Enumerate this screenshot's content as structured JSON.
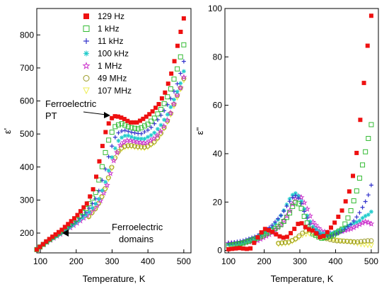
{
  "legend": {
    "entries": [
      {
        "label": "129 Hz",
        "color": "#ee1111",
        "marker": "square-filled"
      },
      {
        "label": "1 kHz",
        "color": "#33bb33",
        "marker": "square-open"
      },
      {
        "label": "11 kHz",
        "color": "#3333cc",
        "marker": "plus"
      },
      {
        "label": "100 kHz",
        "color": "#22cccc",
        "marker": "asterisk"
      },
      {
        "label": "1 MHz",
        "color": "#cc33cc",
        "marker": "star-open"
      },
      {
        "label": "49 MHz",
        "color": "#999922",
        "marker": "circle-open"
      },
      {
        "label": "107 MHz",
        "color": "#eeee55",
        "marker": "triangle-down-open"
      }
    ]
  },
  "annotations": {
    "pt_line1": "Ferroelectric",
    "pt_line2": "PT",
    "dom_line1": "Ferroelectric",
    "dom_line2": "domains"
  },
  "chart_data": [
    {
      "type": "scatter",
      "title": "",
      "xlabel": "Temperature, K",
      "ylabel": "ε'",
      "xlim": [
        90,
        520
      ],
      "ylim": [
        140,
        880
      ],
      "xticks": [
        100,
        200,
        300,
        400,
        500
      ],
      "yticks": [
        200,
        300,
        400,
        500,
        600,
        700,
        800
      ],
      "grid": false,
      "legend_position": "top-left",
      "series": [
        {
          "name": "129 Hz",
          "points": [
            [
              90,
              150
            ],
            [
              120,
              178
            ],
            [
              160,
              210
            ],
            [
              200,
              250
            ],
            [
              230,
              290
            ],
            [
              250,
              340
            ],
            [
              265,
              420
            ],
            [
              280,
              500
            ],
            [
              295,
              545
            ],
            [
              310,
              555
            ],
            [
              330,
              548
            ],
            [
              350,
              535
            ],
            [
              370,
              535
            ],
            [
              390,
              548
            ],
            [
              410,
              565
            ],
            [
              430,
              590
            ],
            [
              450,
              630
            ],
            [
              470,
              700
            ],
            [
              485,
              780
            ],
            [
              500,
              850
            ]
          ]
        },
        {
          "name": "1 kHz",
          "points": [
            [
              90,
              150
            ],
            [
              120,
              176
            ],
            [
              160,
              206
            ],
            [
              200,
              242
            ],
            [
              230,
              278
            ],
            [
              255,
              325
            ],
            [
              272,
              400
            ],
            [
              288,
              475
            ],
            [
              305,
              520
            ],
            [
              325,
              532
            ],
            [
              350,
              520
            ],
            [
              375,
              515
            ],
            [
              400,
              530
            ],
            [
              420,
              550
            ],
            [
              440,
              580
            ],
            [
              460,
              625
            ],
            [
              480,
              690
            ],
            [
              500,
              770
            ]
          ]
        },
        {
          "name": "11 kHz",
          "points": [
            [
              90,
              150
            ],
            [
              120,
              175
            ],
            [
              160,
              203
            ],
            [
              200,
              236
            ],
            [
              230,
              266
            ],
            [
              258,
              310
            ],
            [
              278,
              380
            ],
            [
              295,
              450
            ],
            [
              312,
              500
            ],
            [
              332,
              512
            ],
            [
              355,
              505
            ],
            [
              380,
              500
            ],
            [
              405,
              515
            ],
            [
              425,
              540
            ],
            [
              445,
              570
            ],
            [
              465,
              610
            ],
            [
              485,
              660
            ],
            [
              500,
              720
            ]
          ]
        },
        {
          "name": "100 kHz",
          "points": [
            [
              90,
              150
            ],
            [
              120,
              174
            ],
            [
              160,
              200
            ],
            [
              200,
              231
            ],
            [
              235,
              262
            ],
            [
              262,
              300
            ],
            [
              285,
              365
            ],
            [
              302,
              440
            ],
            [
              320,
              485
            ],
            [
              340,
              497
            ],
            [
              365,
              487
            ],
            [
              390,
              485
            ],
            [
              415,
              500
            ],
            [
              435,
              525
            ],
            [
              455,
              560
            ],
            [
              475,
              610
            ],
            [
              490,
              650
            ],
            [
              500,
              690
            ]
          ]
        },
        {
          "name": "1 MHz",
          "points": [
            [
              100,
              158
            ],
            [
              130,
              180
            ],
            [
              170,
              206
            ],
            [
              210,
              236
            ],
            [
              240,
              262
            ],
            [
              265,
              292
            ],
            [
              288,
              350
            ],
            [
              306,
              425
            ],
            [
              325,
              470
            ],
            [
              345,
              482
            ],
            [
              370,
              476
            ],
            [
              395,
              472
            ],
            [
              420,
              488
            ],
            [
              440,
              515
            ],
            [
              460,
              555
            ],
            [
              480,
              615
            ],
            [
              495,
              650
            ],
            [
              500,
              672
            ]
          ]
        },
        {
          "name": "49 MHz",
          "points": [
            [
              235,
              250
            ],
            [
              258,
              280
            ],
            [
              278,
              325
            ],
            [
              296,
              390
            ],
            [
              312,
              440
            ],
            [
              330,
              462
            ],
            [
              350,
              466
            ],
            [
              370,
              462
            ],
            [
              395,
              460
            ],
            [
              420,
              478
            ],
            [
              440,
              508
            ],
            [
              460,
              552
            ],
            [
              480,
              612
            ],
            [
              495,
              650
            ],
            [
              500,
              668
            ]
          ]
        },
        {
          "name": "107 MHz",
          "points": [
            [
              235,
              248
            ],
            [
              258,
              278
            ],
            [
              278,
              320
            ],
            [
              296,
              385
            ],
            [
              312,
              435
            ],
            [
              330,
              458
            ],
            [
              350,
              462
            ],
            [
              370,
              458
            ],
            [
              395,
              456
            ],
            [
              420,
              474
            ],
            [
              440,
              505
            ],
            [
              460,
              548
            ],
            [
              480,
              605
            ],
            [
              495,
              646
            ],
            [
              500,
              662
            ]
          ]
        }
      ]
    },
    {
      "type": "scatter",
      "title": "",
      "xlabel": "Temperature, K",
      "ylabel": "ε''",
      "xlim": [
        90,
        520
      ],
      "ylim": [
        -1,
        100
      ],
      "xticks": [
        100,
        200,
        300,
        400,
        500
      ],
      "yticks": [
        0,
        20,
        40,
        60,
        80,
        100
      ],
      "grid": false,
      "series": [
        {
          "name": "129 Hz",
          "points": [
            [
              100,
              0.5
            ],
            [
              130,
              1
            ],
            [
              160,
              0.5
            ],
            [
              180,
              5
            ],
            [
              200,
              9
            ],
            [
              220,
              8
            ],
            [
              240,
              6
            ],
            [
              260,
              5
            ],
            [
              280,
              8
            ],
            [
              300,
              12
            ],
            [
              320,
              9
            ],
            [
              340,
              8
            ],
            [
              360,
              5
            ],
            [
              380,
              8
            ],
            [
              400,
              12
            ],
            [
              420,
              17
            ],
            [
              440,
              25
            ],
            [
              455,
              35
            ],
            [
              470,
              55
            ],
            [
              480,
              70
            ],
            [
              490,
              85
            ],
            [
              500,
              97
            ]
          ]
        },
        {
          "name": "1 kHz",
          "points": [
            [
              100,
              2
            ],
            [
              140,
              3
            ],
            [
              180,
              5
            ],
            [
              220,
              8
            ],
            [
              250,
              11
            ],
            [
              270,
              15
            ],
            [
              285,
              20
            ],
            [
              300,
              19
            ],
            [
              315,
              13
            ],
            [
              335,
              7
            ],
            [
              360,
              5
            ],
            [
              390,
              6
            ],
            [
              420,
              9
            ],
            [
              440,
              15
            ],
            [
              460,
              25
            ],
            [
              475,
              35
            ],
            [
              490,
              45
            ],
            [
              500,
              52
            ]
          ]
        },
        {
          "name": "11 kHz",
          "points": [
            [
              100,
              3
            ],
            [
              140,
              4
            ],
            [
              180,
              6
            ],
            [
              220,
              10
            ],
            [
              250,
              15
            ],
            [
              270,
              20
            ],
            [
              285,
              23
            ],
            [
              300,
              21
            ],
            [
              315,
              15
            ],
            [
              335,
              9
            ],
            [
              360,
              6
            ],
            [
              390,
              6
            ],
            [
              420,
              8
            ],
            [
              445,
              11
            ],
            [
              465,
              15
            ],
            [
              480,
              19
            ],
            [
              495,
              24
            ],
            [
              500,
              27
            ]
          ]
        },
        {
          "name": "100 kHz",
          "points": [
            [
              100,
              2.5
            ],
            [
              140,
              3
            ],
            [
              180,
              5
            ],
            [
              220,
              9
            ],
            [
              250,
              15
            ],
            [
              270,
              21
            ],
            [
              285,
              24
            ],
            [
              300,
              22
            ],
            [
              315,
              16
            ],
            [
              335,
              10
            ],
            [
              360,
              7
            ],
            [
              390,
              7
            ],
            [
              420,
              9
            ],
            [
              445,
              11
            ],
            [
              465,
              12
            ],
            [
              480,
              14
            ],
            [
              495,
              15
            ],
            [
              500,
              16
            ]
          ]
        },
        {
          "name": "1 MHz",
          "points": [
            [
              100,
              3
            ],
            [
              140,
              3
            ],
            [
              180,
              4
            ],
            [
              220,
              7
            ],
            [
              250,
              11
            ],
            [
              270,
              16
            ],
            [
              285,
              21
            ],
            [
              300,
              23
            ],
            [
              315,
              19
            ],
            [
              335,
              12
            ],
            [
              360,
              8
            ],
            [
              390,
              7
            ],
            [
              420,
              8
            ],
            [
              445,
              9
            ],
            [
              470,
              11
            ],
            [
              485,
              12
            ],
            [
              500,
              11
            ]
          ]
        },
        {
          "name": "49 MHz",
          "points": [
            [
              240,
              3
            ],
            [
              270,
              3.5
            ],
            [
              290,
              5
            ],
            [
              310,
              7.5
            ],
            [
              325,
              8.5
            ],
            [
              345,
              7
            ],
            [
              370,
              5
            ],
            [
              400,
              4
            ],
            [
              430,
              3.8
            ],
            [
              460,
              3.5
            ],
            [
              490,
              4
            ],
            [
              500,
              4
            ]
          ]
        },
        {
          "name": "107 MHz",
          "points": [
            [
              240,
              2.5
            ],
            [
              270,
              3
            ],
            [
              290,
              4.5
            ],
            [
              310,
              6.5
            ],
            [
              330,
              7
            ],
            [
              350,
              6.5
            ],
            [
              380,
              5
            ],
            [
              410,
              4
            ],
            [
              440,
              3.5
            ],
            [
              470,
              2.5
            ],
            [
              500,
              2
            ]
          ]
        }
      ]
    }
  ]
}
